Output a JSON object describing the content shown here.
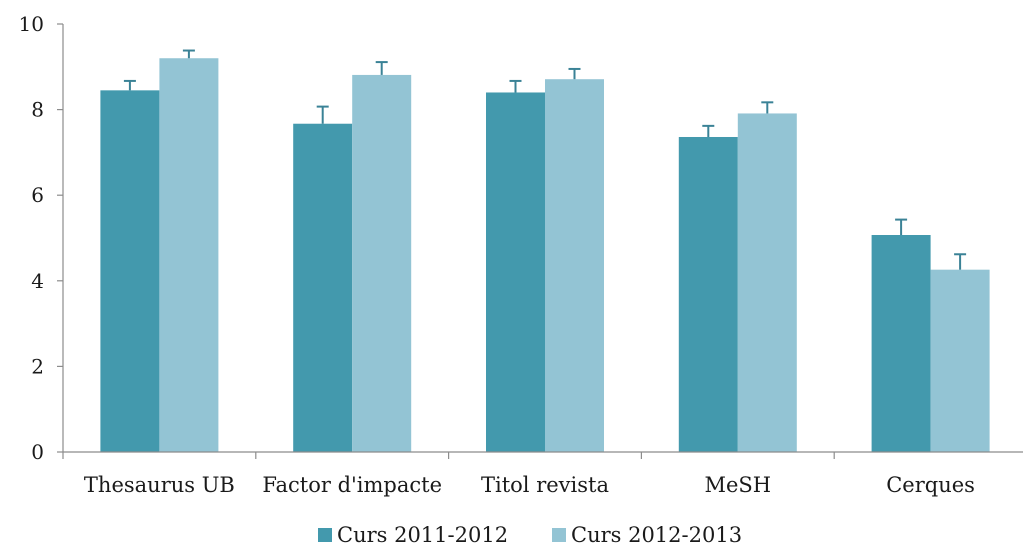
{
  "chart_data": {
    "type": "bar",
    "categories": [
      "Thesaurus UB",
      "Factor d'impacte",
      "Titol revista",
      "MeSH",
      "Cerques"
    ],
    "series": [
      {
        "name": "Curs 2011-2012",
        "color": "#4399ad",
        "values": [
          8.45,
          7.67,
          8.4,
          7.36,
          5.07
        ],
        "errors": [
          0.22,
          0.4,
          0.27,
          0.26,
          0.36
        ]
      },
      {
        "name": "Curs 2012-2013",
        "color": "#93c4d4",
        "values": [
          9.2,
          8.81,
          8.71,
          7.91,
          4.26
        ],
        "errors": [
          0.18,
          0.3,
          0.24,
          0.26,
          0.36
        ]
      }
    ],
    "ylim": [
      0,
      10
    ],
    "yticks": [
      0,
      2,
      4,
      6,
      8,
      10
    ],
    "grid": false,
    "legend_position": "bottom",
    "error_bar_color": "#3a8296"
  }
}
